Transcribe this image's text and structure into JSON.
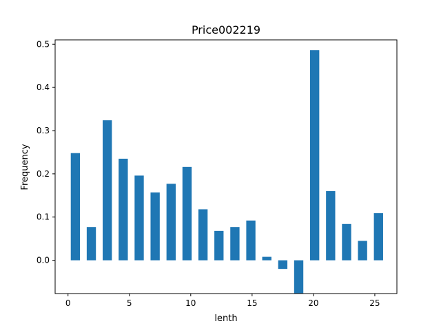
{
  "chart_data": {
    "type": "bar",
    "title": "Price002219",
    "xlabel": "lenth",
    "ylabel": "Frequency",
    "xlim": [
      -1.05,
      26.8
    ],
    "ylim": [
      -0.077,
      0.51
    ],
    "xticks": [
      0,
      5,
      10,
      15,
      20,
      25
    ],
    "yticks": [
      0.0,
      0.1,
      0.2,
      0.3,
      0.4,
      0.5
    ],
    "bar_width": 0.75,
    "x": [
      0.6,
      1.9,
      3.2,
      4.5,
      5.8,
      7.1,
      8.4,
      9.7,
      11.0,
      12.3,
      13.6,
      14.9,
      16.2,
      17.5,
      18.8,
      20.1,
      21.4,
      22.7,
      24.0,
      25.3
    ],
    "values": [
      0.248,
      0.077,
      0.324,
      0.235,
      0.196,
      0.157,
      0.177,
      0.216,
      0.118,
      0.068,
      0.077,
      0.092,
      0.008,
      -0.02,
      -0.077,
      0.486,
      0.16,
      0.084,
      0.045,
      0.109
    ],
    "color": "#1f77b4",
    "grid": false
  }
}
